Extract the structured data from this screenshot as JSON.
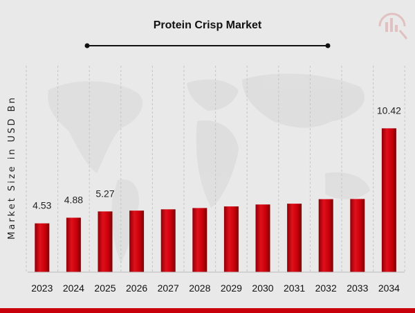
{
  "chart_data": {
    "type": "bar",
    "title": "Protein Crisp Market",
    "ylabel": "Market Size in USD Bn",
    "xlabel": "",
    "categories": [
      "2023",
      "2024",
      "2025",
      "2026",
      "2027",
      "2028",
      "2029",
      "2030",
      "2031",
      "2032",
      "2033",
      "2034"
    ],
    "values": [
      4.53,
      4.88,
      5.27,
      5.32,
      5.4,
      5.48,
      5.58,
      5.7,
      5.75,
      6.03,
      6.04,
      10.42
    ],
    "data_labels": {
      "0": "4.53",
      "1": "4.88",
      "2": "5.27",
      "11": "10.42"
    },
    "grid": "vertical dashed",
    "legend": "none",
    "bar_color": "#c8000c",
    "bar_highlight": "#e8111c",
    "bar_shadow": "#6e0004",
    "background": "#e9e9e9",
    "footer_color": "#c8000c"
  }
}
